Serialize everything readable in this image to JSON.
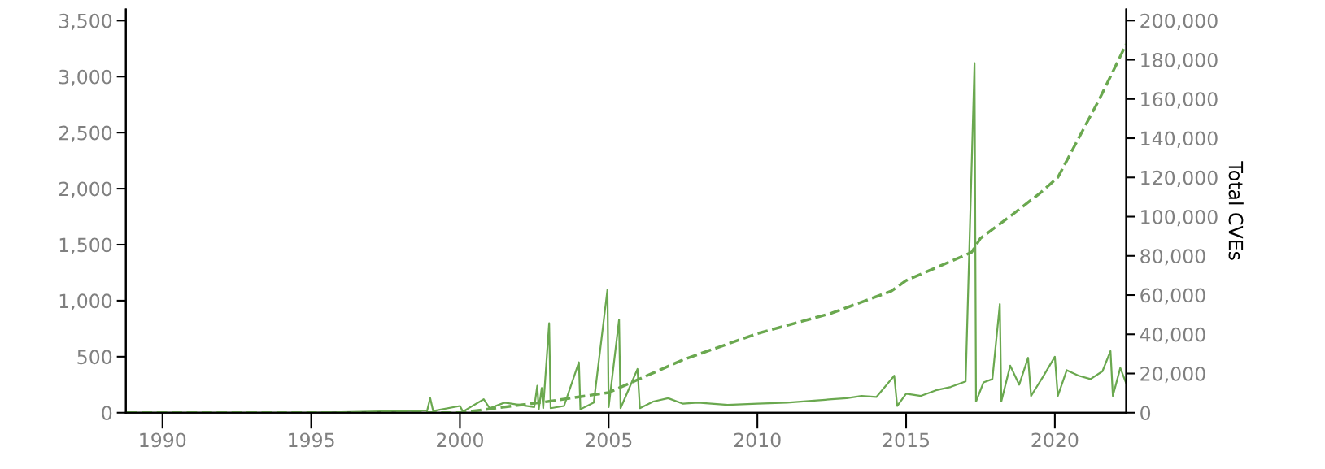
{
  "chart_data": {
    "type": "line",
    "y2label": "Total CVEs",
    "xlim": [
      1988.77,
      2022.4
    ],
    "xticks": [
      1990,
      1995,
      2000,
      2005,
      2010,
      2015,
      2020
    ],
    "ylim": [
      0,
      3600
    ],
    "yticks": [
      {
        "value": 0,
        "label": "0"
      },
      {
        "value": 500,
        "label": "500"
      },
      {
        "value": 1000,
        "label": "1,000"
      },
      {
        "value": 1500,
        "label": "1,500"
      },
      {
        "value": 2000,
        "label": "2,000"
      },
      {
        "value": 2500,
        "label": "2,500"
      },
      {
        "value": 3000,
        "label": "3,000"
      },
      {
        "value": 3500,
        "label": "3,500"
      }
    ],
    "y2lim": [
      0,
      205700
    ],
    "y2ticks": [
      {
        "value": 0,
        "label": "0"
      },
      {
        "value": 20000,
        "label": "20,000"
      },
      {
        "value": 40000,
        "label": "40,000"
      },
      {
        "value": 60000,
        "label": "60,000"
      },
      {
        "value": 80000,
        "label": "80,000"
      },
      {
        "value": 100000,
        "label": "100,000"
      },
      {
        "value": 120000,
        "label": "120,000"
      },
      {
        "value": 140000,
        "label": "140,000"
      },
      {
        "value": 160000,
        "label": "160,000"
      },
      {
        "value": 180000,
        "label": "180,000"
      },
      {
        "value": 200000,
        "label": "200,000"
      }
    ],
    "grid": false,
    "legend": false,
    "series": [
      {
        "color": "#6aa84f",
        "line_style": "solid",
        "x": [
          1988.8,
          1995,
          1997,
          1998,
          1998.9,
          1999.0,
          1999.1,
          2000,
          2000.1,
          2000.8,
          2001,
          2001.5,
          2002,
          2002.5,
          2002.6,
          2002.65,
          2002.75,
          2002.8,
          2003.0,
          2003.05,
          2003.5,
          2004.0,
          2004.05,
          2004.5,
          2004.96,
          2005.0,
          2005.35,
          2005.4,
          2005.97,
          2006.05,
          2006.5,
          2007,
          2007.5,
          2008,
          2009,
          2010,
          2011,
          2012,
          2012.5,
          2013,
          2013.5,
          2014,
          2014.6,
          2014.7,
          2015,
          2015.5,
          2016,
          2016.5,
          2017,
          2017.3,
          2017.35,
          2017.6,
          2017.9,
          2018.15,
          2018.2,
          2018.5,
          2018.8,
          2019.1,
          2019.2,
          2019.6,
          2020.0,
          2020.1,
          2020.4,
          2020.8,
          2021.2,
          2021.6,
          2021.87,
          2021.95,
          2022.2,
          2022.4
        ],
        "values": [
          0,
          0,
          10,
          15,
          20,
          130,
          15,
          60,
          10,
          120,
          40,
          90,
          70,
          50,
          240,
          30,
          220,
          40,
          800,
          40,
          60,
          450,
          30,
          90,
          1100,
          50,
          830,
          40,
          390,
          40,
          100,
          130,
          80,
          90,
          70,
          80,
          90,
          110,
          120,
          130,
          150,
          140,
          330,
          60,
          170,
          150,
          200,
          230,
          280,
          3120,
          100,
          270,
          300,
          970,
          100,
          420,
          250,
          490,
          150,
          320,
          500,
          150,
          380,
          330,
          300,
          370,
          550,
          150,
          400,
          260
        ]
      },
      {
        "color": "#6aa84f",
        "axis": "y2",
        "line_style": "dashed",
        "x": [
          1988.8,
          2000,
          2003,
          2005,
          2007.5,
          2010,
          2012.5,
          2014.5,
          2015,
          2017.2,
          2017.5,
          2018.5,
          2019.5,
          2020.1,
          2021.5,
          2022.4
        ],
        "values": [
          0,
          0,
          5800,
          10300,
          27000,
          40400,
          50800,
          62000,
          67400,
          81800,
          89000,
          100200,
          112000,
          120000,
          160000,
          188000
        ]
      }
    ]
  }
}
